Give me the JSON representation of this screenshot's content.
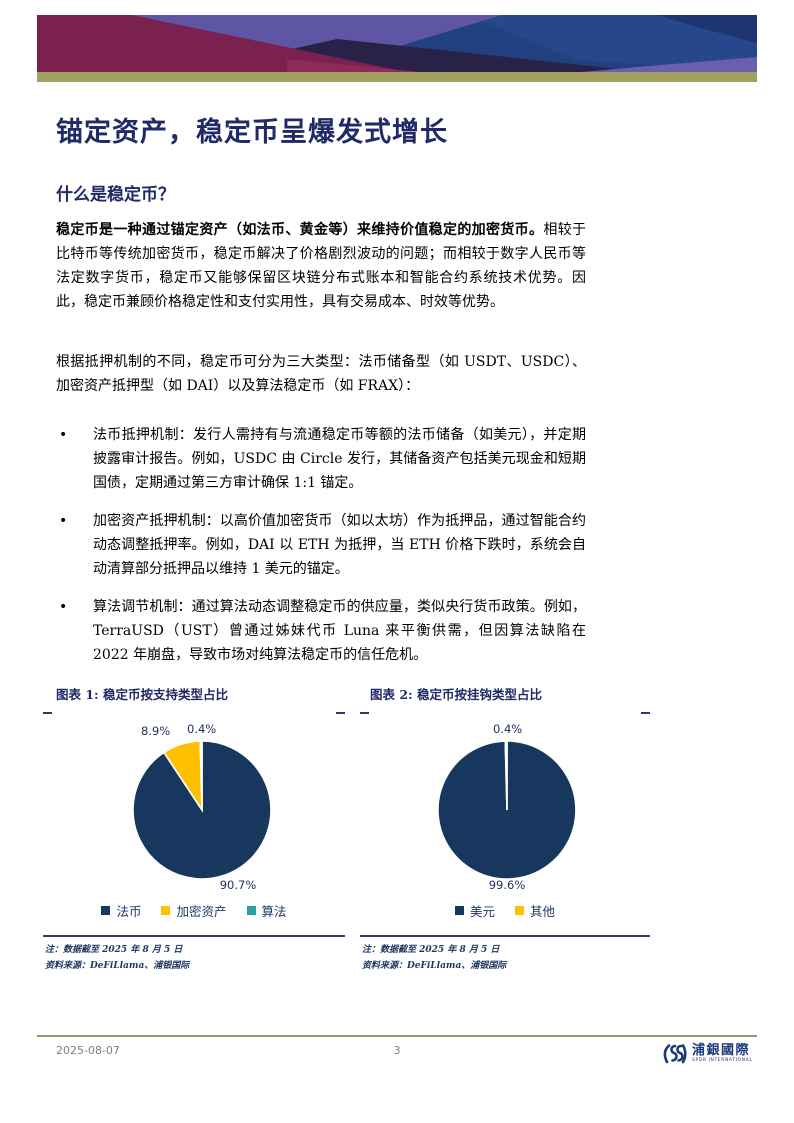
{
  "page": {
    "title": "锚定资产，稳定币呈爆发式增长",
    "section_heading": "什么是稳定币？",
    "paragraph1_bold": "稳定币是一种通过锚定资产（如法币、黄金等）来维持价值稳定的加密货币。",
    "paragraph1_rest": "相较于比特币等传统加密货币，稳定币解决了价格剧烈波动的问题；而相较于数字人民币等法定数字货币，稳定币又能够保留区块链分布式账本和智能合约系统技术优势。因此，稳定币兼顾价格稳定性和支付实用性，具有交易成本、时效等优势。",
    "paragraph2": "根据抵押机制的不同，稳定币可分为三大类型：法币储备型（如 USDT、USDC）、加密资产抵押型（如 DAI）以及算法稳定币（如 FRAX）：",
    "bullets": [
      "法币抵押机制：发行人需持有与流通稳定币等额的法币储备（如美元），并定期披露审计报告。例如，USDC 由 Circle 发行，其储备资产包括美元现金和短期国债，定期通过第三方审计确保 1:1 锚定。",
      "加密资产抵押机制：以高价值加密货币（如以太坊）作为抵押品，通过智能合约动态调整抵押率。例如，DAI 以 ETH 为抵押，当 ETH 价格下跌时，系统会自动清算部分抵押品以维持 1 美元的锚定。",
      "算法调节机制：通过算法动态调整稳定币的供应量，类似央行货币政策。例如，TerraUSD（UST）曾通过姊妹代币 Luna 来平衡供需，但因算法缺陷在 2022 年崩盘，导致市场对纯算法稳定币的信任危机。"
    ]
  },
  "chart_data": [
    {
      "type": "pie",
      "title": "图表 1: 稳定币按支持类型占比",
      "labels": [
        "法币",
        "加密资产",
        "算法"
      ],
      "values": [
        90.7,
        8.9,
        0.4
      ],
      "data_labels": [
        "90.7%",
        "8.9%",
        "0.4%"
      ],
      "colors": [
        "#17375E",
        "#FFC000",
        "#2E9E9E"
      ],
      "start_angle_deg": -90,
      "direction": "clockwise",
      "legend_position": "bottom",
      "note": "注：数据截至 2025 年 8 月 5 日",
      "source": "资料来源：DeFiLlama、浦银国际"
    },
    {
      "type": "pie",
      "title": "图表 2: 稳定币按挂钩类型占比",
      "labels": [
        "美元",
        "其他"
      ],
      "values": [
        99.6,
        0.4
      ],
      "data_labels": [
        "99.6%",
        "0.4%"
      ],
      "colors": [
        "#17375E",
        "#FFC000"
      ],
      "start_angle_deg": -90,
      "direction": "clockwise",
      "legend_position": "bottom",
      "note": "注：数据截至 2025 年 8 月 5 日",
      "source": "资料来源：DeFiLlama、浦银国际"
    }
  ],
  "footer": {
    "date": "2025-08-07",
    "page_number": "3",
    "logo_cn": "浦銀國際",
    "logo_en": "SPDB INTERNATIONAL"
  },
  "colors": {
    "heading_navy": "#1F2A66",
    "pie_navy": "#17375E",
    "pie_gold": "#FFC000",
    "pie_teal": "#2E9E9E",
    "note_navy": "#1F3864",
    "rule_navy": "#40356B",
    "footer_olive": "#9A9862",
    "footer_gray": "#7F7F7F",
    "banner_maroon": "#7B2150",
    "banner_purple": "#5E56A5",
    "banner_dark": "#2A2148",
    "banner_blue": "#21407F",
    "banner_olive": "#A2A061"
  }
}
